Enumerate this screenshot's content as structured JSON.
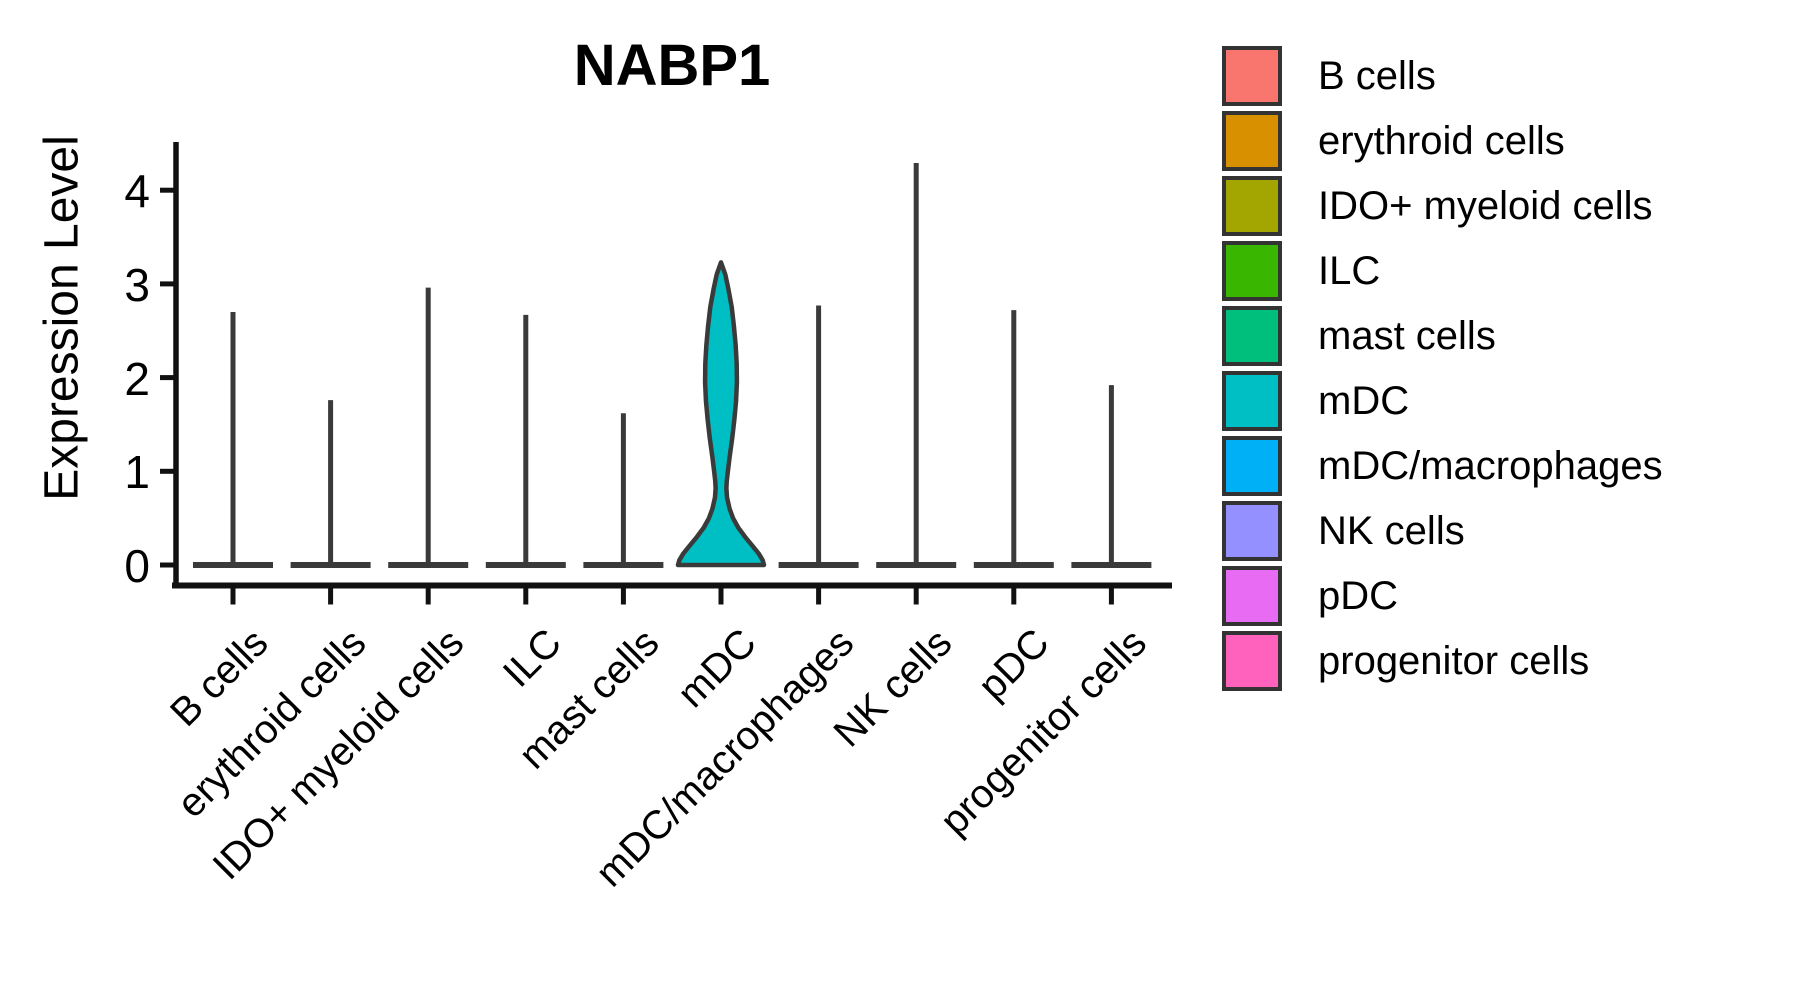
{
  "chart_data": {
    "type": "violin",
    "title": "NABP1",
    "ylabel": "Expression Level",
    "xlabel": "",
    "y_ticks": [
      0,
      1,
      2,
      3,
      4
    ],
    "ylim": [
      0,
      4.5
    ],
    "grid": false,
    "legend_position": "right",
    "categories": [
      "B cells",
      "erythroid cells",
      "IDO+ myeloid cells",
      "ILC",
      "mast cells",
      "mDC",
      "mDC/macrophages",
      "NK cells",
      "pDC",
      "progenitor cells"
    ],
    "series": [
      {
        "name": "B cells",
        "color": "#F8766D",
        "max_expression": 2.7,
        "shape": "spike"
      },
      {
        "name": "erythroid cells",
        "color": "#D89000",
        "max_expression": 1.76,
        "shape": "spike"
      },
      {
        "name": "IDO+ myeloid cells",
        "color": "#A3A500",
        "max_expression": 2.96,
        "shape": "spike"
      },
      {
        "name": "ILC",
        "color": "#39B600",
        "max_expression": 2.67,
        "shape": "spike"
      },
      {
        "name": "mast cells",
        "color": "#00BF7D",
        "max_expression": 1.62,
        "shape": "spike"
      },
      {
        "name": "mDC",
        "color": "#00BFC4",
        "max_expression": 3.23,
        "shape": "violin"
      },
      {
        "name": "mDC/macrophages",
        "color": "#00B0F6",
        "max_expression": 2.77,
        "shape": "spike"
      },
      {
        "name": "NK cells",
        "color": "#9590FF",
        "max_expression": 4.29,
        "shape": "spike"
      },
      {
        "name": "pDC",
        "color": "#E76BF3",
        "max_expression": 2.72,
        "shape": "spike"
      },
      {
        "name": "progenitor cells",
        "color": "#FF62BC",
        "max_expression": 1.92,
        "shape": "spike"
      }
    ],
    "mdc_violin_profile": [
      [
        3.23,
        0.0
      ],
      [
        3.1,
        0.1
      ],
      [
        2.95,
        0.17
      ],
      [
        2.75,
        0.25
      ],
      [
        2.55,
        0.3
      ],
      [
        2.35,
        0.34
      ],
      [
        2.15,
        0.365
      ],
      [
        1.95,
        0.37
      ],
      [
        1.75,
        0.35
      ],
      [
        1.55,
        0.31
      ],
      [
        1.35,
        0.26
      ],
      [
        1.15,
        0.2
      ],
      [
        1.0,
        0.16
      ],
      [
        0.9,
        0.135
      ],
      [
        0.82,
        0.125
      ],
      [
        0.72,
        0.14
      ],
      [
        0.6,
        0.2
      ],
      [
        0.5,
        0.28
      ],
      [
        0.4,
        0.4
      ],
      [
        0.3,
        0.56
      ],
      [
        0.2,
        0.74
      ],
      [
        0.12,
        0.88
      ],
      [
        0.05,
        0.97
      ],
      [
        0.0,
        1.0
      ]
    ],
    "colors": {
      "violin_outline": "#3A3A3A",
      "axis": "#111111",
      "text": "#000000",
      "legend_swatch_border": "#333333"
    }
  }
}
